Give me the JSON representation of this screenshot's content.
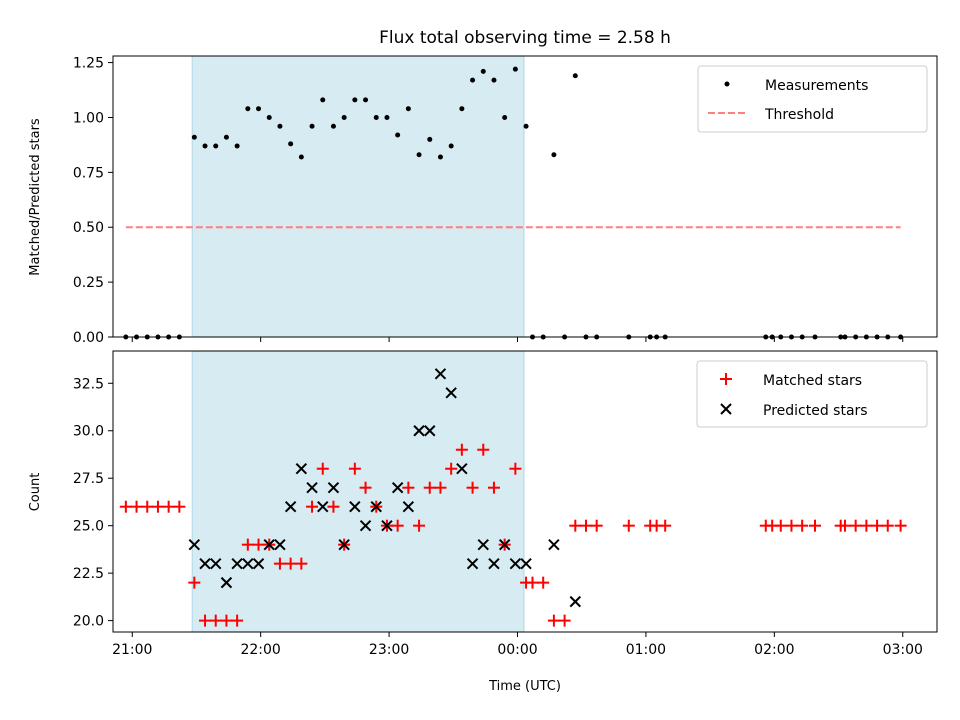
{
  "chart_data": [
    {
      "type": "scatter",
      "title": "Flux total observing time = 2.58 h",
      "xlabel": "",
      "ylabel": "Matched/Predicted stars",
      "ylim": [
        0,
        1.28
      ],
      "xlim": [
        "20:51",
        "03:16"
      ],
      "yticks": [
        "0.00",
        "0.25",
        "0.50",
        "0.75",
        "1.00",
        "1.25"
      ],
      "shaded_interval": [
        "21:28",
        "00:03"
      ],
      "shade_color": "#add8e6",
      "legend": {
        "placement": "top-right",
        "entries": [
          "Measurements",
          "Threshold"
        ]
      },
      "series": [
        {
          "name": "Measurements",
          "marker": "dot",
          "color": "#000000",
          "points": [
            [
              "20:57",
              0
            ],
            [
              "21:02",
              0
            ],
            [
              "21:07",
              0
            ],
            [
              "21:12",
              0
            ],
            [
              "21:17",
              0
            ],
            [
              "21:22",
              0
            ],
            [
              "21:29",
              0.91
            ],
            [
              "21:34",
              0.87
            ],
            [
              "21:39",
              0.87
            ],
            [
              "21:44",
              0.91
            ],
            [
              "21:49",
              0.87
            ],
            [
              "21:54",
              1.04
            ],
            [
              "21:59",
              1.04
            ],
            [
              "22:04",
              1.0
            ],
            [
              "22:09",
              0.96
            ],
            [
              "22:14",
              0.88
            ],
            [
              "22:19",
              0.82
            ],
            [
              "22:24",
              0.96
            ],
            [
              "22:29",
              1.08
            ],
            [
              "22:34",
              0.96
            ],
            [
              "22:39",
              1.0
            ],
            [
              "22:44",
              1.08
            ],
            [
              "22:49",
              1.08
            ],
            [
              "22:54",
              1.0
            ],
            [
              "22:59",
              1.0
            ],
            [
              "23:04",
              0.92
            ],
            [
              "23:09",
              1.04
            ],
            [
              "23:14",
              0.83
            ],
            [
              "23:19",
              0.9
            ],
            [
              "23:24",
              0.82
            ],
            [
              "23:29",
              0.87
            ],
            [
              "23:34",
              1.04
            ],
            [
              "23:39",
              1.17
            ],
            [
              "23:44",
              1.21
            ],
            [
              "23:49",
              1.17
            ],
            [
              "23:54",
              1.0
            ],
            [
              "23:59",
              1.22
            ],
            [
              "00:04",
              0.96
            ],
            [
              "00:07",
              0
            ],
            [
              "00:12",
              0
            ],
            [
              "00:17",
              0.83
            ],
            [
              "00:22",
              0
            ],
            [
              "00:27",
              1.19
            ],
            [
              "00:32",
              0
            ],
            [
              "00:37",
              0
            ],
            [
              "00:52",
              0
            ],
            [
              "01:02",
              0
            ],
            [
              "01:05",
              0
            ],
            [
              "01:09",
              0
            ],
            [
              "01:56",
              0
            ],
            [
              "01:59",
              0
            ],
            [
              "02:03",
              0
            ],
            [
              "02:08",
              0
            ],
            [
              "02:13",
              0
            ],
            [
              "02:19",
              0
            ],
            [
              "02:31",
              0
            ],
            [
              "02:33",
              0
            ],
            [
              "02:38",
              0
            ],
            [
              "02:43",
              0
            ],
            [
              "02:48",
              0
            ],
            [
              "02:53",
              0
            ],
            [
              "02:59",
              0
            ]
          ]
        },
        {
          "name": "Threshold",
          "marker": "dashed-line",
          "color": "#ff7f7f",
          "points": [
            [
              "20:57",
              0.5
            ],
            [
              "02:59",
              0.5
            ]
          ]
        }
      ]
    },
    {
      "type": "scatter",
      "title": "",
      "xlabel": "Time (UTC)",
      "ylabel": "Count",
      "ylim": [
        19.4,
        34.2
      ],
      "xlim": [
        "20:51",
        "03:16"
      ],
      "yticks": [
        "20.0",
        "22.5",
        "25.0",
        "27.5",
        "30.0",
        "32.5"
      ],
      "xticks": [
        "21:00",
        "22:00",
        "23:00",
        "00:00",
        "01:00",
        "02:00",
        "03:00"
      ],
      "shaded_interval": [
        "21:28",
        "00:03"
      ],
      "shade_color": "#add8e6",
      "legend": {
        "placement": "top-right",
        "entries": [
          "Matched stars",
          "Predicted stars"
        ]
      },
      "series": [
        {
          "name": "Matched stars",
          "marker": "plus",
          "color": "#ff0000",
          "points": [
            [
              "20:57",
              26
            ],
            [
              "21:02",
              26
            ],
            [
              "21:07",
              26
            ],
            [
              "21:12",
              26
            ],
            [
              "21:17",
              26
            ],
            [
              "21:22",
              26
            ],
            [
              "21:29",
              22
            ],
            [
              "21:34",
              20
            ],
            [
              "21:39",
              20
            ],
            [
              "21:44",
              20
            ],
            [
              "21:49",
              20
            ],
            [
              "21:54",
              24
            ],
            [
              "21:59",
              24
            ],
            [
              "22:04",
              24
            ],
            [
              "22:09",
              23
            ],
            [
              "22:14",
              23
            ],
            [
              "22:19",
              23
            ],
            [
              "22:24",
              26
            ],
            [
              "22:29",
              28
            ],
            [
              "22:34",
              26
            ],
            [
              "22:39",
              24
            ],
            [
              "22:44",
              28
            ],
            [
              "22:49",
              27
            ],
            [
              "22:54",
              26
            ],
            [
              "22:59",
              25
            ],
            [
              "23:04",
              25
            ],
            [
              "23:09",
              27
            ],
            [
              "23:14",
              25
            ],
            [
              "23:19",
              27
            ],
            [
              "23:24",
              27
            ],
            [
              "23:29",
              28
            ],
            [
              "23:34",
              29
            ],
            [
              "23:39",
              27
            ],
            [
              "23:44",
              29
            ],
            [
              "23:49",
              27
            ],
            [
              "23:54",
              24
            ],
            [
              "23:59",
              28
            ],
            [
              "00:04",
              22
            ],
            [
              "00:07",
              22
            ],
            [
              "00:12",
              22
            ],
            [
              "00:17",
              20
            ],
            [
              "00:22",
              20
            ],
            [
              "00:27",
              25
            ],
            [
              "00:32",
              25
            ],
            [
              "00:37",
              25
            ],
            [
              "00:52",
              25
            ],
            [
              "01:02",
              25
            ],
            [
              "01:05",
              25
            ],
            [
              "01:09",
              25
            ],
            [
              "01:56",
              25
            ],
            [
              "01:59",
              25
            ],
            [
              "02:03",
              25
            ],
            [
              "02:08",
              25
            ],
            [
              "02:13",
              25
            ],
            [
              "02:19",
              25
            ],
            [
              "02:31",
              25
            ],
            [
              "02:33",
              25
            ],
            [
              "02:38",
              25
            ],
            [
              "02:43",
              25
            ],
            [
              "02:48",
              25
            ],
            [
              "02:53",
              25
            ],
            [
              "02:59",
              25
            ]
          ]
        },
        {
          "name": "Predicted stars",
          "marker": "x",
          "color": "#000000",
          "points": [
            [
              "21:29",
              24
            ],
            [
              "21:34",
              23
            ],
            [
              "21:39",
              23
            ],
            [
              "21:44",
              22
            ],
            [
              "21:49",
              23
            ],
            [
              "21:54",
              23
            ],
            [
              "21:59",
              23
            ],
            [
              "22:04",
              24
            ],
            [
              "22:09",
              24
            ],
            [
              "22:14",
              26
            ],
            [
              "22:19",
              28
            ],
            [
              "22:24",
              27
            ],
            [
              "22:29",
              26
            ],
            [
              "22:34",
              27
            ],
            [
              "22:39",
              24
            ],
            [
              "22:44",
              26
            ],
            [
              "22:49",
              25
            ],
            [
              "22:54",
              26
            ],
            [
              "22:59",
              25
            ],
            [
              "23:04",
              27
            ],
            [
              "23:09",
              26
            ],
            [
              "23:14",
              30
            ],
            [
              "23:19",
              30
            ],
            [
              "23:24",
              33
            ],
            [
              "23:29",
              32
            ],
            [
              "23:34",
              28
            ],
            [
              "23:39",
              23
            ],
            [
              "23:44",
              24
            ],
            [
              "23:49",
              23
            ],
            [
              "23:54",
              24
            ],
            [
              "23:59",
              23
            ],
            [
              "00:04",
              23
            ],
            [
              "00:17",
              24
            ],
            [
              "00:27",
              21
            ]
          ]
        }
      ]
    }
  ]
}
